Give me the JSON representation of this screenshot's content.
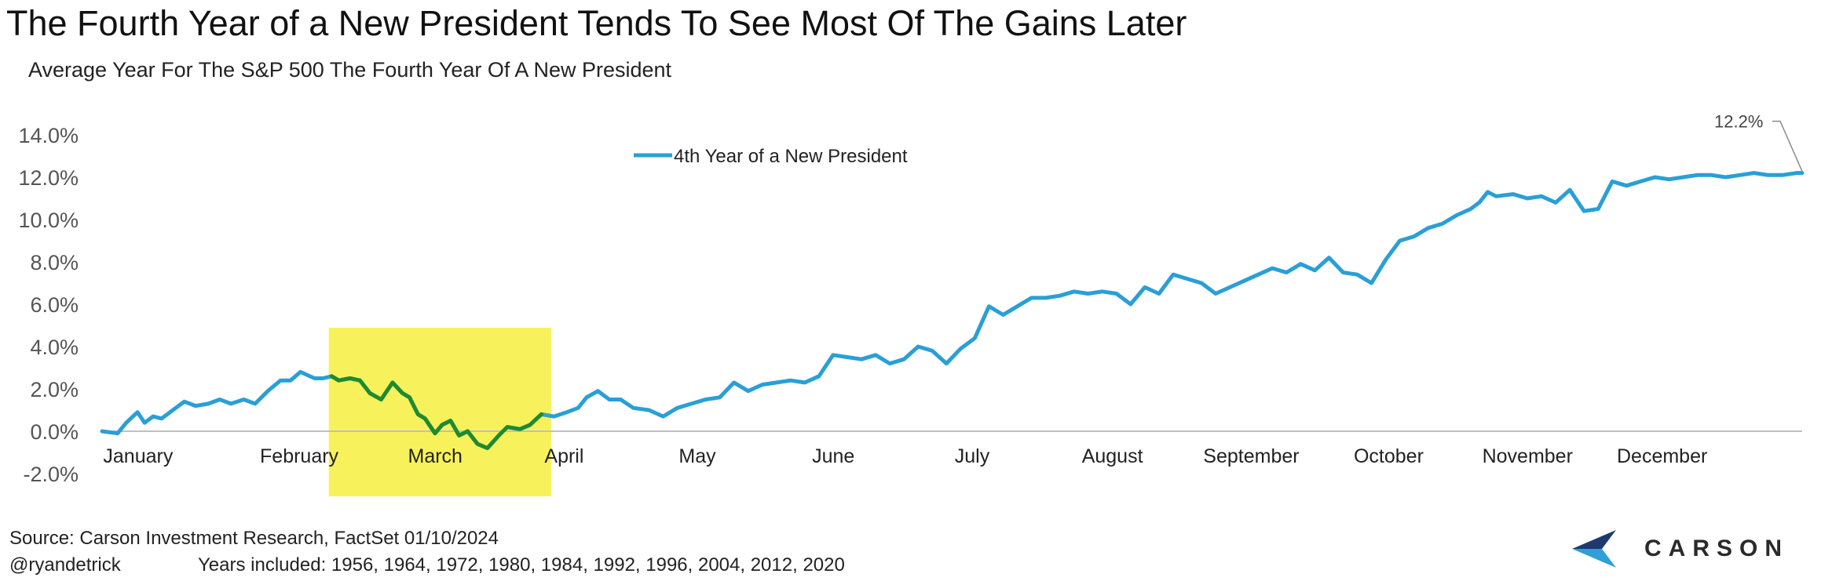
{
  "title": "The Fourth Year of a New President Tends To See Most Of The Gains Later",
  "subtitle": "Average Year For The S&P 500 The Fourth Year Of A New President",
  "footer": {
    "source": "Source: Carson Investment Research, FactSet 01/10/2024",
    "handle": "@ryandetrick",
    "years": "Years included: 1956, 1964, 1972, 1980, 1984, 1992, 1996, 2004, 2012, 2020"
  },
  "logo": {
    "text": "CARSON",
    "colors": [
      "#1f3a6e",
      "#2d9fd9"
    ]
  },
  "colors": {
    "line": "#2a9fd6",
    "highlight_fill": "#f7f25b",
    "highlight_line": "#1f8a2e",
    "axis": "#bfbfbf"
  },
  "chart_data": {
    "type": "line",
    "ylim": [
      -2,
      14
    ],
    "y_ticks": [
      "-2.0%",
      "0.0%",
      "2.0%",
      "4.0%",
      "6.0%",
      "8.0%",
      "10.0%",
      "12.0%",
      "14.0%"
    ],
    "y_tick_values": [
      -2,
      0,
      2,
      4,
      6,
      8,
      10,
      12,
      14
    ],
    "grid": false,
    "legend_position": "top-center",
    "x_ticks": [
      "January",
      "February",
      "March",
      "April",
      "May",
      "June",
      "July",
      "August",
      "September",
      "October",
      "November",
      "December"
    ],
    "x_tick_positions": [
      0.03,
      1.07,
      2.03,
      2.94,
      3.88,
      4.84,
      5.82,
      6.81,
      7.79,
      8.76,
      9.74,
      10.69
    ],
    "x_range": [
      0,
      12
    ],
    "highlight_range": [
      1.6,
      3.17
    ],
    "series": [
      {
        "name": "4th Year of a New President",
        "x": [
          0.0,
          0.11,
          0.17,
          0.25,
          0.3,
          0.36,
          0.42,
          0.5,
          0.58,
          0.66,
          0.75,
          0.83,
          0.91,
          1.0,
          1.08,
          1.17,
          1.26,
          1.33,
          1.4,
          1.5,
          1.56,
          1.62,
          1.67,
          1.75,
          1.82,
          1.89,
          1.97,
          2.05,
          2.12,
          2.17,
          2.23,
          2.28,
          2.35,
          2.4,
          2.46,
          2.52,
          2.58,
          2.65,
          2.72,
          2.8,
          2.86,
          2.95,
          3.02,
          3.1,
          3.19,
          3.28,
          3.36,
          3.42,
          3.5,
          3.58,
          3.66,
          3.75,
          3.86,
          3.96,
          4.06,
          4.16,
          4.26,
          4.36,
          4.46,
          4.56,
          4.66,
          4.76,
          4.86,
          4.96,
          5.06,
          5.16,
          5.26,
          5.36,
          5.46,
          5.56,
          5.66,
          5.76,
          5.86,
          5.96,
          6.06,
          6.16,
          6.26,
          6.36,
          6.46,
          6.56,
          6.66,
          6.76,
          6.86,
          6.96,
          7.06,
          7.16,
          7.26,
          7.36,
          7.46,
          7.56,
          7.66,
          7.76,
          7.86,
          7.96,
          8.06,
          8.16,
          8.26,
          8.36,
          8.46,
          8.56,
          8.66,
          8.76,
          8.86,
          8.96,
          9.06,
          9.16,
          9.26,
          9.36,
          9.46,
          9.56,
          9.66,
          9.72,
          9.78,
          9.84,
          9.96,
          10.06,
          10.16,
          10.26,
          10.36,
          10.46,
          10.56,
          10.66,
          10.76,
          10.86,
          10.96,
          11.06,
          11.16,
          11.26,
          11.36,
          11.46,
          11.56,
          11.66,
          11.76,
          11.86,
          11.96,
          12.0
        ],
        "values": [
          0.0,
          -0.1,
          0.4,
          0.9,
          0.4,
          0.7,
          0.6,
          1.0,
          1.4,
          1.2,
          1.3,
          1.5,
          1.3,
          1.5,
          1.3,
          1.9,
          2.4,
          2.4,
          2.8,
          2.5,
          2.5,
          2.6,
          2.4,
          2.5,
          2.4,
          1.8,
          1.5,
          2.3,
          1.8,
          1.6,
          0.8,
          0.6,
          -0.1,
          0.3,
          0.5,
          -0.2,
          0.0,
          -0.6,
          -0.8,
          -0.2,
          0.2,
          0.1,
          0.3,
          0.8,
          0.7,
          0.9,
          1.1,
          1.6,
          1.9,
          1.5,
          1.5,
          1.1,
          1.0,
          0.7,
          1.1,
          1.3,
          1.5,
          1.6,
          2.3,
          1.9,
          2.2,
          2.3,
          2.4,
          2.3,
          2.6,
          3.6,
          3.5,
          3.4,
          3.6,
          3.2,
          3.4,
          4.0,
          3.8,
          3.2,
          3.9,
          4.4,
          5.9,
          5.5,
          5.9,
          6.3,
          6.3,
          6.4,
          6.6,
          6.5,
          6.6,
          6.5,
          6.0,
          6.8,
          6.5,
          7.4,
          7.2,
          7.0,
          6.5,
          6.8,
          7.1,
          7.4,
          7.7,
          7.5,
          7.9,
          7.6,
          8.2,
          7.5,
          7.4,
          7.0,
          8.1,
          9.0,
          9.2,
          9.6,
          9.8,
          10.2,
          10.5,
          10.8,
          11.3,
          11.1,
          11.2,
          11.0,
          11.1,
          10.8,
          11.4,
          10.4,
          10.5,
          11.8,
          11.6,
          11.8,
          12.0,
          11.9,
          12.0,
          12.1,
          12.1,
          12.0,
          12.1,
          12.2,
          12.1,
          12.1,
          12.2,
          12.2
        ],
        "final_label": "12.2%"
      }
    ]
  }
}
